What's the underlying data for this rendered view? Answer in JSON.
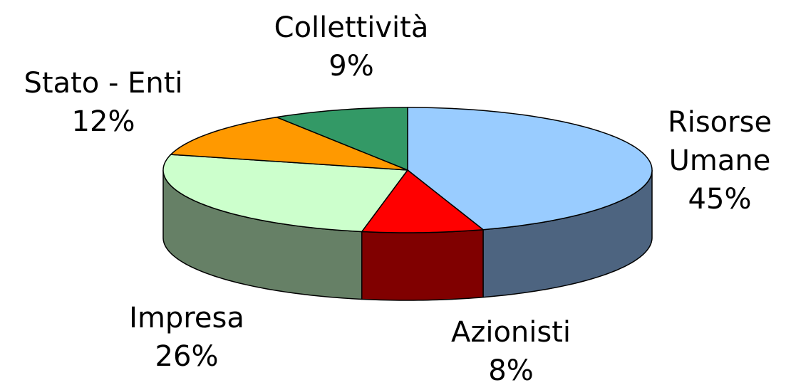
{
  "chart_data": {
    "type": "pie",
    "three_d": true,
    "categories": [
      "Risorse Umane",
      "Azionisti",
      "Impresa",
      "Stato - Enti",
      "Collettività"
    ],
    "values": [
      45,
      8,
      26,
      12,
      9
    ],
    "value_labels": [
      "45%",
      "8%",
      "26%",
      "12%",
      "9%"
    ],
    "colors": [
      "#99ccff",
      "#ff0000",
      "#ccffcc",
      "#ff9900",
      "#339966"
    ],
    "side_colors": [
      "#4d6480",
      "#800000",
      "#668066",
      "#804d00",
      "#1a4d33"
    ]
  }
}
